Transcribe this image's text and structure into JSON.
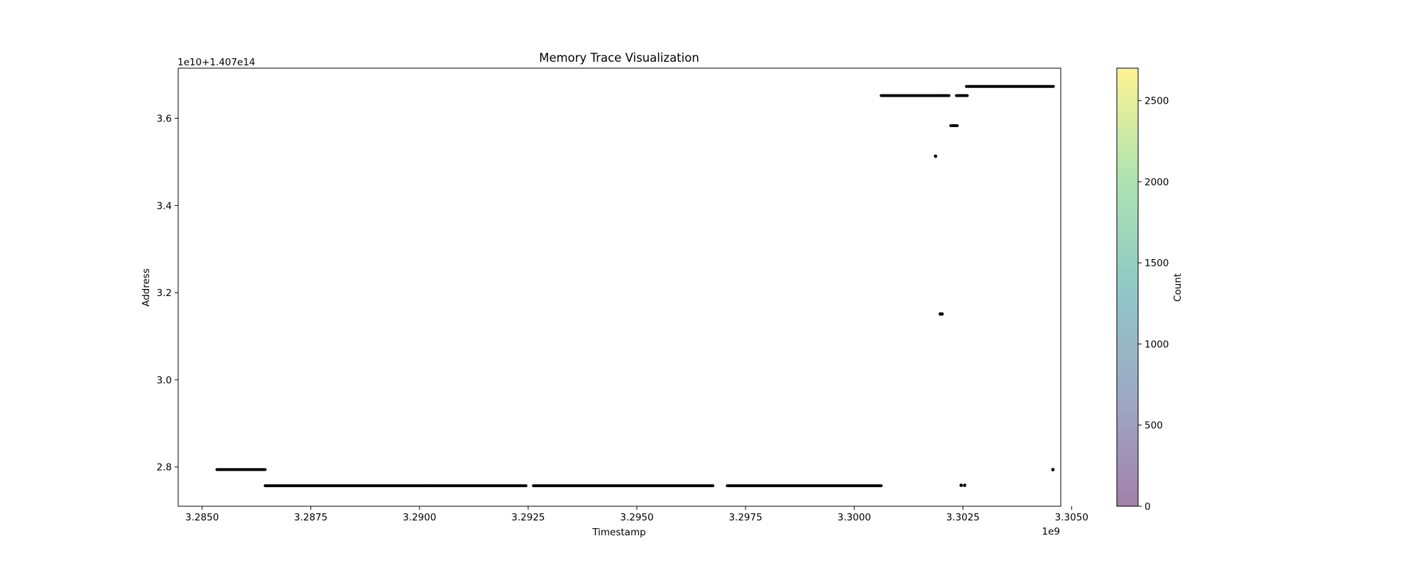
{
  "chart_data": {
    "type": "scatter",
    "title": "Memory Trace Visualization",
    "xlabel": "Timestamp",
    "ylabel": "Address",
    "x_offset_text": "1e9",
    "y_offset_text": "1e10+1.407e14",
    "xlim": [
      3.28445,
      3.30475
    ],
    "ylim": [
      2.71,
      3.715
    ],
    "xticks": [
      {
        "value": 3.285,
        "label": "3.2850"
      },
      {
        "value": 3.2875,
        "label": "3.2875"
      },
      {
        "value": 3.29,
        "label": "3.2900"
      },
      {
        "value": 3.2925,
        "label": "3.2925"
      },
      {
        "value": 3.295,
        "label": "3.2950"
      },
      {
        "value": 3.2975,
        "label": "3.2975"
      },
      {
        "value": 3.3,
        "label": "3.3000"
      },
      {
        "value": 3.3025,
        "label": "3.3025"
      },
      {
        "value": 3.305,
        "label": "3.3050"
      }
    ],
    "yticks": [
      {
        "value": 2.8,
        "label": "2.8"
      },
      {
        "value": 3.0,
        "label": "3.0"
      },
      {
        "value": 3.2,
        "label": "3.2"
      },
      {
        "value": 3.4,
        "label": "3.4"
      },
      {
        "value": 3.6,
        "label": "3.6"
      }
    ],
    "grid": false,
    "point_color": "#000000",
    "segments": [
      {
        "x0": 3.28534,
        "x1": 3.28645,
        "y": 2.794
      },
      {
        "x0": 3.28645,
        "x1": 3.29012,
        "y": 2.757
      },
      {
        "x0": 3.29015,
        "x1": 3.29245,
        "y": 2.757
      },
      {
        "x0": 3.29262,
        "x1": 3.29675,
        "y": 2.757
      },
      {
        "x0": 3.29708,
        "x1": 3.30062,
        "y": 2.757
      },
      {
        "x0": 3.30062,
        "x1": 3.30198,
        "y": 3.652
      },
      {
        "x0": 3.30198,
        "x1": 3.30218,
        "y": 3.652
      },
      {
        "x0": 3.30235,
        "x1": 3.3026,
        "y": 3.652
      },
      {
        "x0": 3.30222,
        "x1": 3.30237,
        "y": 3.583
      },
      {
        "x0": 3.30258,
        "x1": 3.30458,
        "y": 3.673
      }
    ],
    "points": [
      {
        "x": 3.30187,
        "y": 3.513
      },
      {
        "x": 3.30198,
        "y": 3.151
      },
      {
        "x": 3.30202,
        "y": 3.151
      },
      {
        "x": 3.30246,
        "y": 2.758
      },
      {
        "x": 3.30254,
        "y": 2.758
      },
      {
        "x": 3.30457,
        "y": 2.794
      }
    ],
    "colorbar": {
      "label": "Count",
      "min": 0,
      "max": 2700,
      "ticks": [
        {
          "value": 0,
          "label": "0"
        },
        {
          "value": 500,
          "label": "500"
        },
        {
          "value": 1000,
          "label": "1000"
        },
        {
          "value": 1500,
          "label": "1500"
        },
        {
          "value": 2000,
          "label": "2000"
        },
        {
          "value": 2500,
          "label": "2500"
        }
      ],
      "colormap": [
        "#440154",
        "#3b528b",
        "#21918c",
        "#5ec962",
        "#fde725"
      ],
      "alpha": 0.5
    }
  }
}
